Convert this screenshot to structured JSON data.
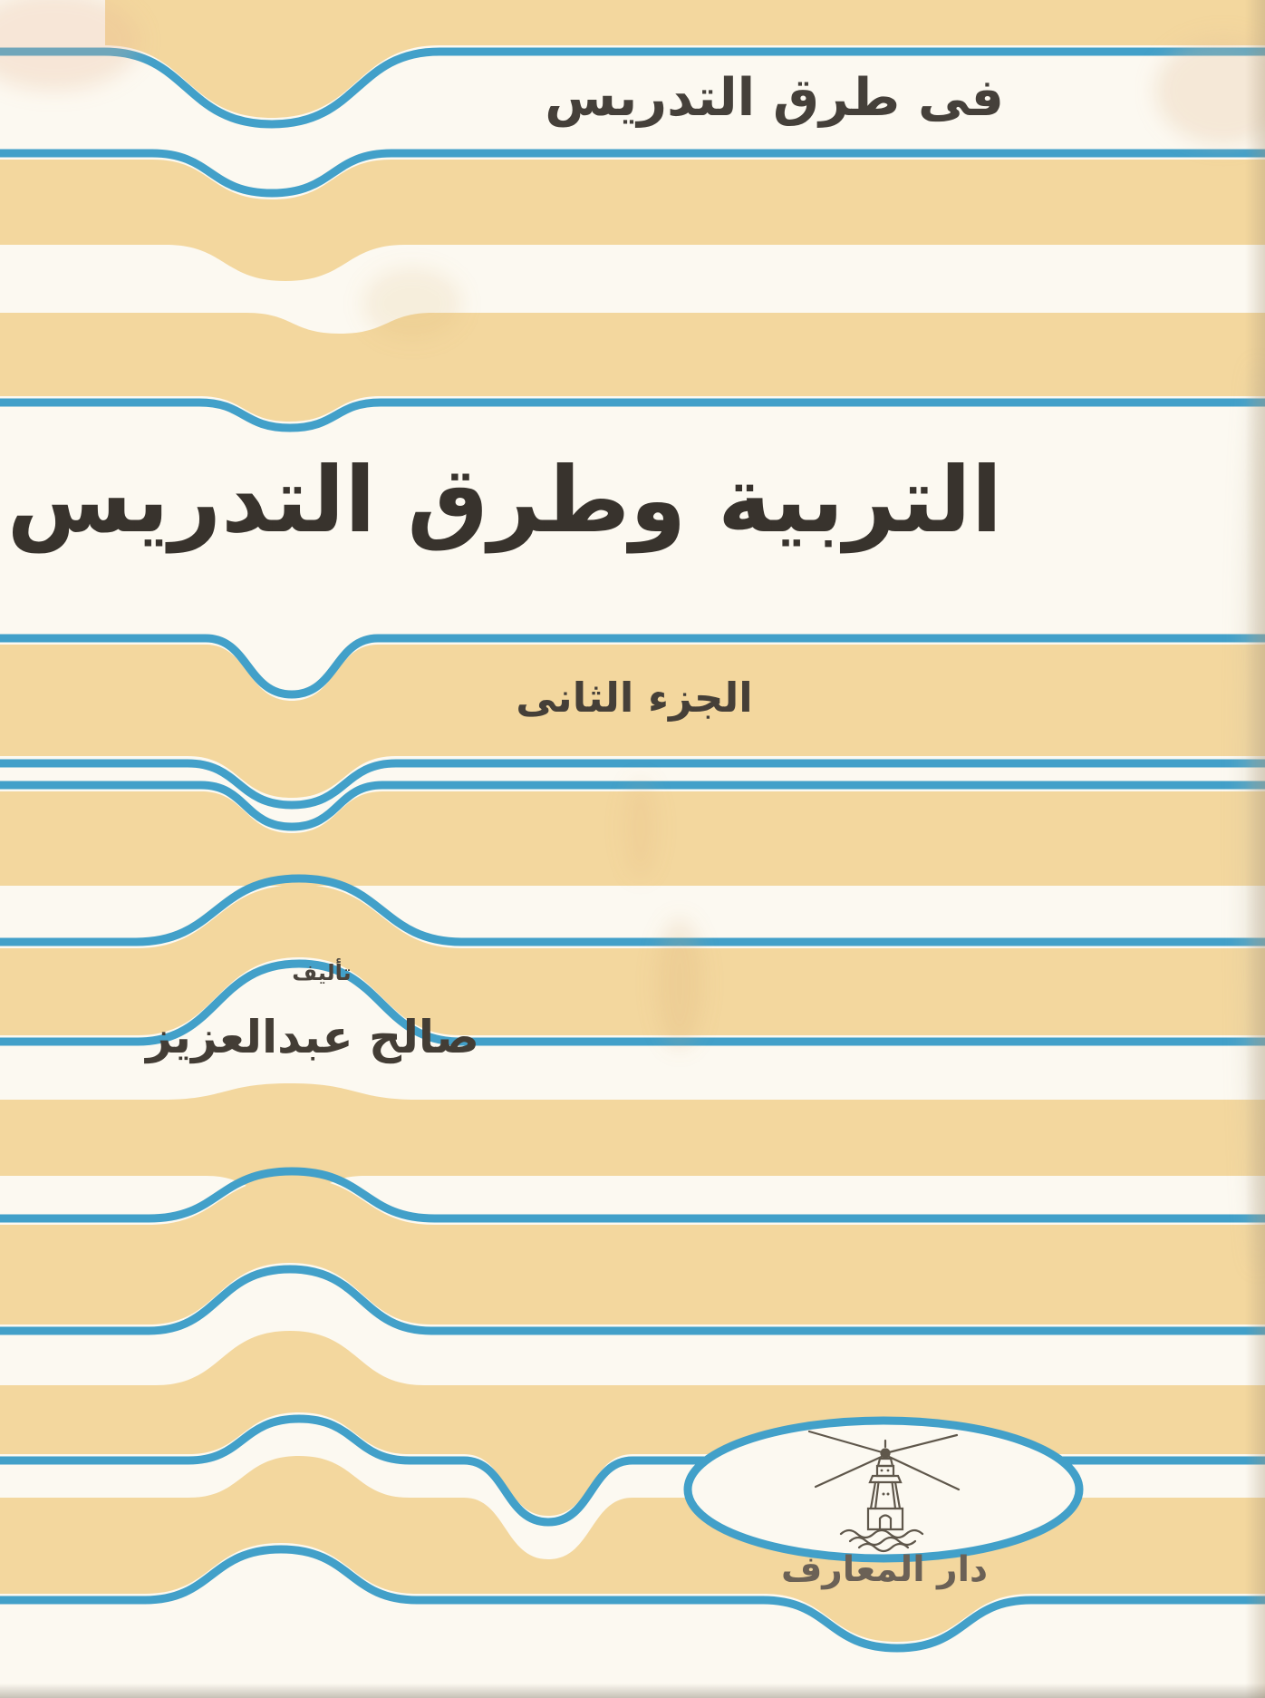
{
  "cover": {
    "series_title": "فى طرق التدريس",
    "main_title": "التربية وطرق التدريس",
    "part_label": "الجزء الثانى",
    "byline_label": "تأليف",
    "author_name": "صالح عبدالعزيز",
    "publisher_name": "دار المعارف"
  },
  "logo": {
    "icon": "lighthouse-icon",
    "description": "lighthouse with light rays over waves inside white oval"
  },
  "colors": {
    "band_yellow": "#f3d79e",
    "line_blue": "#42a0c9",
    "paper_white": "#fcf9f1",
    "ink_dark": "#38332d",
    "publisher_ink": "#6b6156"
  }
}
